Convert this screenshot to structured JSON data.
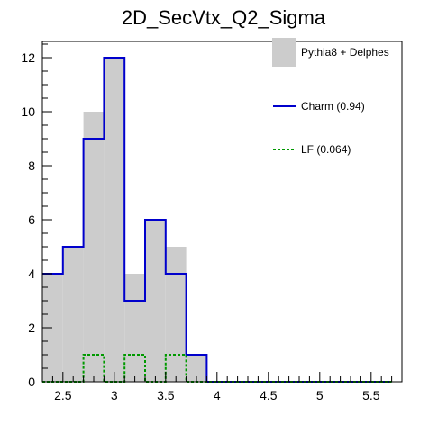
{
  "chart_data": {
    "type": "bar",
    "title": "2D_SecVtx_Q2_Sigma",
    "xlabel": "",
    "ylabel": "",
    "xlim": [
      2.3,
      5.8
    ],
    "ylim": [
      0,
      12.6
    ],
    "bin_width": 0.2,
    "x_ticks": [
      2.5,
      3,
      3.5,
      4,
      4.5,
      5,
      5.5
    ],
    "x_tick_labels": [
      "2.5",
      "3",
      "3.5",
      "4",
      "4.5",
      "5",
      "5.5"
    ],
    "y_ticks": [
      0,
      2,
      4,
      6,
      8,
      10,
      12
    ],
    "y_tick_labels": [
      "0",
      "2",
      "4",
      "6",
      "8",
      "10",
      "12"
    ],
    "grid": false,
    "legend_position": "top-right",
    "bin_edges": [
      2.3,
      2.5,
      2.7,
      2.9,
      3.1,
      3.3,
      3.5,
      3.7,
      3.9,
      4.1,
      4.3,
      4.5,
      4.7,
      4.9,
      5.1,
      5.3,
      5.5,
      5.7
    ],
    "series": [
      {
        "name": "Pythia8 + Delphes",
        "style": "filled",
        "color": "#cccccc",
        "values": [
          4,
          5,
          10,
          12,
          4,
          6,
          5,
          1,
          0,
          0,
          0,
          0,
          0,
          0,
          0,
          0,
          0
        ]
      },
      {
        "name": "Charm (0.94)",
        "style": "solid",
        "color": "#0000cc",
        "values": [
          4,
          5,
          9,
          12,
          3,
          6,
          4,
          1,
          0,
          0,
          0,
          0,
          0,
          0,
          0,
          0,
          0
        ]
      },
      {
        "name": "LF (0.064)",
        "style": "dashed",
        "color": "#009900",
        "values": [
          0,
          0,
          1,
          0,
          1,
          0,
          1,
          0,
          0,
          0,
          0,
          0,
          0,
          0,
          0,
          0,
          0
        ]
      }
    ]
  }
}
